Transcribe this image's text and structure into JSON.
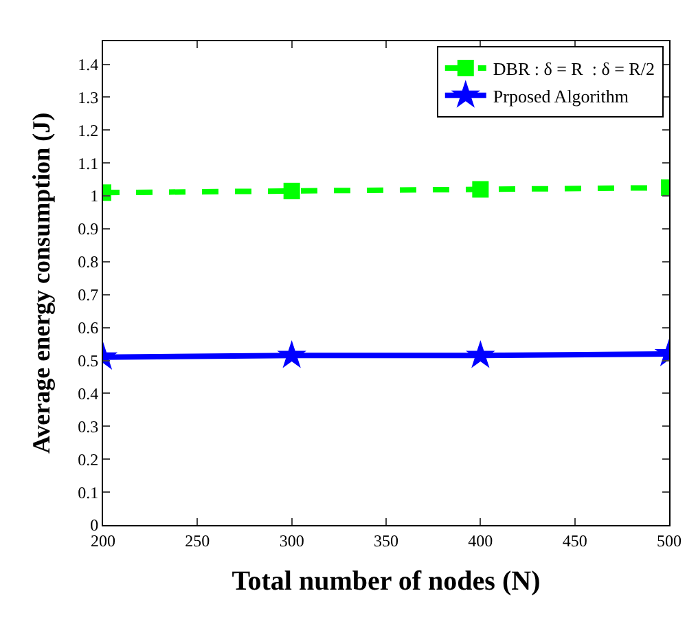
{
  "chart_data": {
    "type": "line",
    "xlabel": "Total number of nodes (N)",
    "ylabel": "Average energy consumption (J)",
    "x": [
      200,
      300,
      400,
      500
    ],
    "series": [
      {
        "name": "DBR : δ = R  : δ = R/2",
        "color": "#00ff00",
        "values": [
          1.01,
          1.015,
          1.02,
          1.025
        ],
        "marker": "square",
        "line_style": "dashed"
      },
      {
        "name": "Prposed Algorithm",
        "color": "#0000ff",
        "values": [
          0.51,
          0.515,
          0.515,
          0.52
        ],
        "marker": "star",
        "line_style": "solid"
      }
    ],
    "xlim": [
      200,
      500
    ],
    "xticks": [
      200,
      250,
      300,
      350,
      400,
      450,
      500
    ],
    "ylim": [
      0,
      1.47
    ],
    "yticks": [
      0,
      0.1,
      0.2,
      0.3,
      0.4,
      0.5,
      0.6,
      0.7,
      0.8,
      0.9,
      1,
      1.1,
      1.2,
      1.3,
      1.4
    ],
    "legend": "top right"
  }
}
